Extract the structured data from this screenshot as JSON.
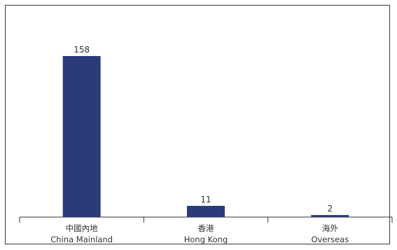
{
  "chart_data": {
    "type": "bar",
    "categories": [
      [
        "中國內地",
        "China  Mainland"
      ],
      [
        "香港",
        "Hong Kong"
      ],
      [
        "海外",
        "Overseas"
      ]
    ],
    "values": [
      158,
      11,
      2
    ],
    "data_labels": [
      "158",
      "11",
      "2"
    ],
    "title": "",
    "xlabel": "",
    "ylabel": "",
    "ylim": [
      0,
      180
    ],
    "grid": false,
    "legend": "none",
    "bar_color": "#2b3a7a"
  }
}
